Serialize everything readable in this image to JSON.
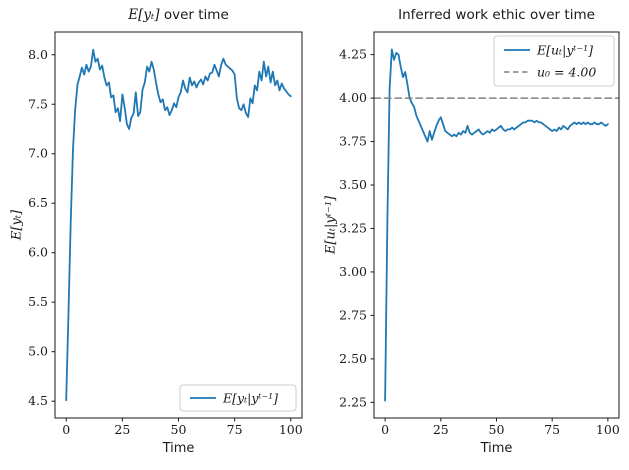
{
  "figure": {
    "background": "#ffffff",
    "palette": {
      "line_blue": "#1f77b4",
      "dash_gray": "#808080",
      "axis_color": "#1a1a1a",
      "legend_edge": "#cccccc"
    }
  },
  "chart_data": [
    {
      "type": "line",
      "title": {
        "math": "E[yₜ]",
        "text": " over time"
      },
      "xlabel": "Time",
      "ylabel": "E[yₜ]",
      "xlim": [
        -5,
        105
      ],
      "ylim": [
        4.33,
        8.23
      ],
      "xticks": [
        "0",
        "25",
        "50",
        "75",
        "100"
      ],
      "yticks": [
        "4.5",
        "5.0",
        "5.5",
        "6.0",
        "6.5",
        "7.0",
        "7.5",
        "8.0"
      ],
      "grid": false,
      "legend": {
        "position": "lower-right"
      },
      "series": [
        {
          "name": "E[yₜ|yᵗ⁻¹]",
          "color": "#1f77b4",
          "style": "solid",
          "x_start": 0,
          "x_step": 1,
          "values": [
            4.51,
            5.4,
            6.3,
            7.05,
            7.45,
            7.7,
            7.78,
            7.87,
            7.8,
            7.9,
            7.83,
            7.88,
            8.05,
            7.93,
            7.96,
            7.85,
            7.89,
            7.77,
            7.69,
            7.72,
            7.57,
            7.59,
            7.42,
            7.46,
            7.33,
            7.6,
            7.47,
            7.3,
            7.25,
            7.36,
            7.41,
            7.62,
            7.38,
            7.42,
            7.65,
            7.72,
            7.88,
            7.83,
            7.93,
            7.85,
            7.72,
            7.6,
            7.52,
            7.55,
            7.44,
            7.47,
            7.39,
            7.44,
            7.51,
            7.47,
            7.57,
            7.62,
            7.74,
            7.66,
            7.62,
            7.77,
            7.69,
            7.73,
            7.67,
            7.72,
            7.75,
            7.7,
            7.78,
            7.74,
            7.81,
            7.82,
            7.9,
            7.84,
            7.78,
            7.9,
            7.96,
            7.9,
            7.88,
            7.86,
            7.84,
            7.8,
            7.56,
            7.46,
            7.44,
            7.5,
            7.41,
            7.37,
            7.56,
            7.51,
            7.69,
            7.64,
            7.83,
            7.74,
            7.93,
            7.78,
            7.88,
            7.72,
            7.83,
            7.69,
            7.74,
            7.64,
            7.71,
            7.66,
            7.63,
            7.6,
            7.58
          ]
        }
      ]
    },
    {
      "type": "line",
      "title": {
        "math": "",
        "text": "Inferred work ethic over time"
      },
      "xlabel": "Time",
      "ylabel": "E[uₜ|yᵗ⁻¹]",
      "xlim": [
        -5,
        105
      ],
      "ylim": [
        2.16,
        4.38
      ],
      "xticks": [
        "0",
        "25",
        "50",
        "75",
        "100"
      ],
      "yticks": [
        "2.25",
        "2.50",
        "2.75",
        "3.00",
        "3.25",
        "3.50",
        "3.75",
        "4.00",
        "4.25"
      ],
      "grid": false,
      "legend": {
        "position": "upper-right"
      },
      "series": [
        {
          "name": "E[uₜ|yᵗ⁻¹]",
          "color": "#1f77b4",
          "style": "solid",
          "x_start": 0,
          "x_step": 1,
          "values": [
            2.26,
            3.3,
            4.05,
            4.28,
            4.22,
            4.26,
            4.25,
            4.18,
            4.12,
            4.15,
            4.08,
            4.0,
            3.97,
            3.95,
            3.9,
            3.87,
            3.84,
            3.81,
            3.78,
            3.75,
            3.81,
            3.76,
            3.8,
            3.84,
            3.87,
            3.89,
            3.85,
            3.81,
            3.8,
            3.79,
            3.78,
            3.79,
            3.78,
            3.8,
            3.79,
            3.81,
            3.8,
            3.84,
            3.8,
            3.79,
            3.8,
            3.81,
            3.82,
            3.8,
            3.79,
            3.8,
            3.81,
            3.8,
            3.82,
            3.81,
            3.82,
            3.83,
            3.84,
            3.82,
            3.81,
            3.82,
            3.82,
            3.83,
            3.82,
            3.83,
            3.84,
            3.85,
            3.86,
            3.86,
            3.87,
            3.87,
            3.87,
            3.86,
            3.87,
            3.86,
            3.86,
            3.85,
            3.84,
            3.83,
            3.82,
            3.81,
            3.82,
            3.81,
            3.83,
            3.82,
            3.84,
            3.83,
            3.82,
            3.84,
            3.85,
            3.86,
            3.85,
            3.86,
            3.85,
            3.86,
            3.85,
            3.86,
            3.85,
            3.85,
            3.86,
            3.85,
            3.85,
            3.86,
            3.85,
            3.84,
            3.85
          ]
        },
        {
          "name": "u₀ = 4.00",
          "color": "#808080",
          "style": "dashed",
          "constant": 4.0
        }
      ]
    }
  ]
}
